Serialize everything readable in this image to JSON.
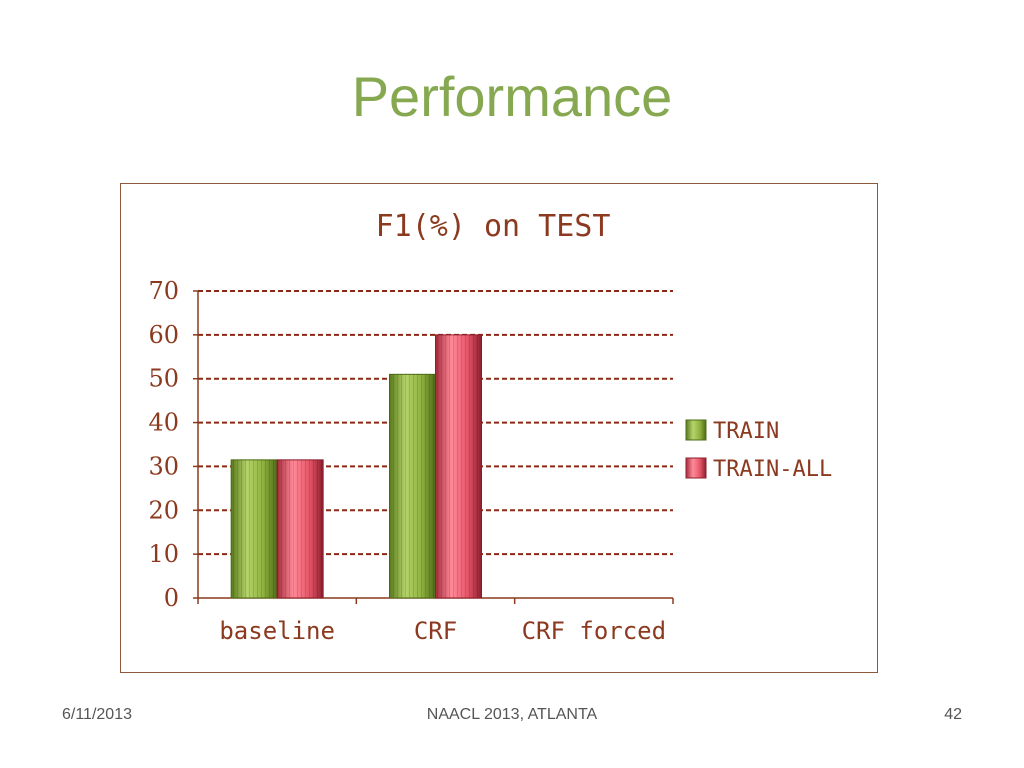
{
  "slide": {
    "title": "Performance",
    "footer_date": "6/11/2013",
    "footer_center": "NAACL 2013, ATLANTA",
    "page_number": "42"
  },
  "chart_data": {
    "type": "bar",
    "title": "F1(%) on TEST",
    "xlabel": "",
    "ylabel": "",
    "categories": [
      "baseline",
      "CRF",
      "CRF forced"
    ],
    "ylim": [
      0,
      70
    ],
    "yticks": [
      0,
      10,
      20,
      30,
      40,
      50,
      60,
      70
    ],
    "grid": true,
    "legend_position": "right",
    "series": [
      {
        "name": "TRAIN",
        "values": [
          31.5,
          51,
          null
        ],
        "color": "#86a83a"
      },
      {
        "name": "TRAIN-ALL",
        "values": [
          31.5,
          60,
          null
        ],
        "color": "#e8566a"
      }
    ]
  }
}
